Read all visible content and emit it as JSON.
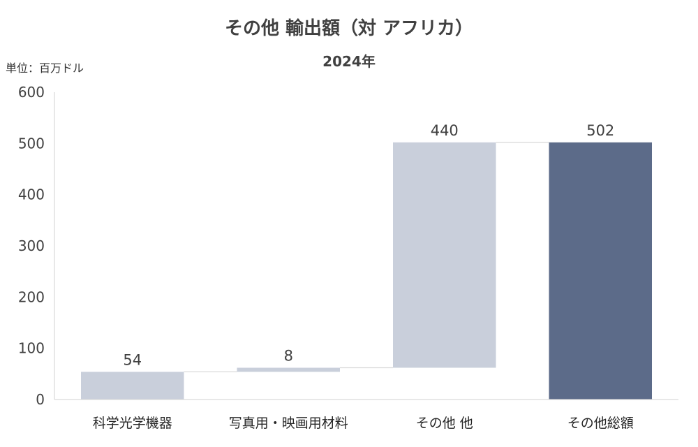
{
  "header": {
    "title": "その他 輸出額（対 アフリカ）",
    "subtitle": "2024年",
    "unit": "単位：百万ドル"
  },
  "colors": {
    "increase_bar": "#C9CFDB",
    "total_bar": "#5C6B89",
    "connector": "#D9D9D9",
    "axis": "#D9D9D9"
  },
  "chart_data": {
    "type": "bar",
    "variant": "waterfall",
    "title": "その他 輸出額（対 アフリカ）",
    "subtitle": "2024年",
    "unit": "単位：百万ドル",
    "categories": [
      "科学光学機器",
      "写真用・映画用材料",
      "その他 他",
      "その他総額"
    ],
    "values": [
      54,
      8,
      440,
      502
    ],
    "labels": [
      "54",
      "8",
      "440",
      "502"
    ],
    "bar_kind": [
      "increase",
      "increase",
      "increase",
      "total"
    ],
    "ylim": [
      0,
      600
    ],
    "yticks": [
      0,
      100,
      200,
      300,
      400,
      500,
      600
    ],
    "grid": false,
    "legend": "none"
  }
}
